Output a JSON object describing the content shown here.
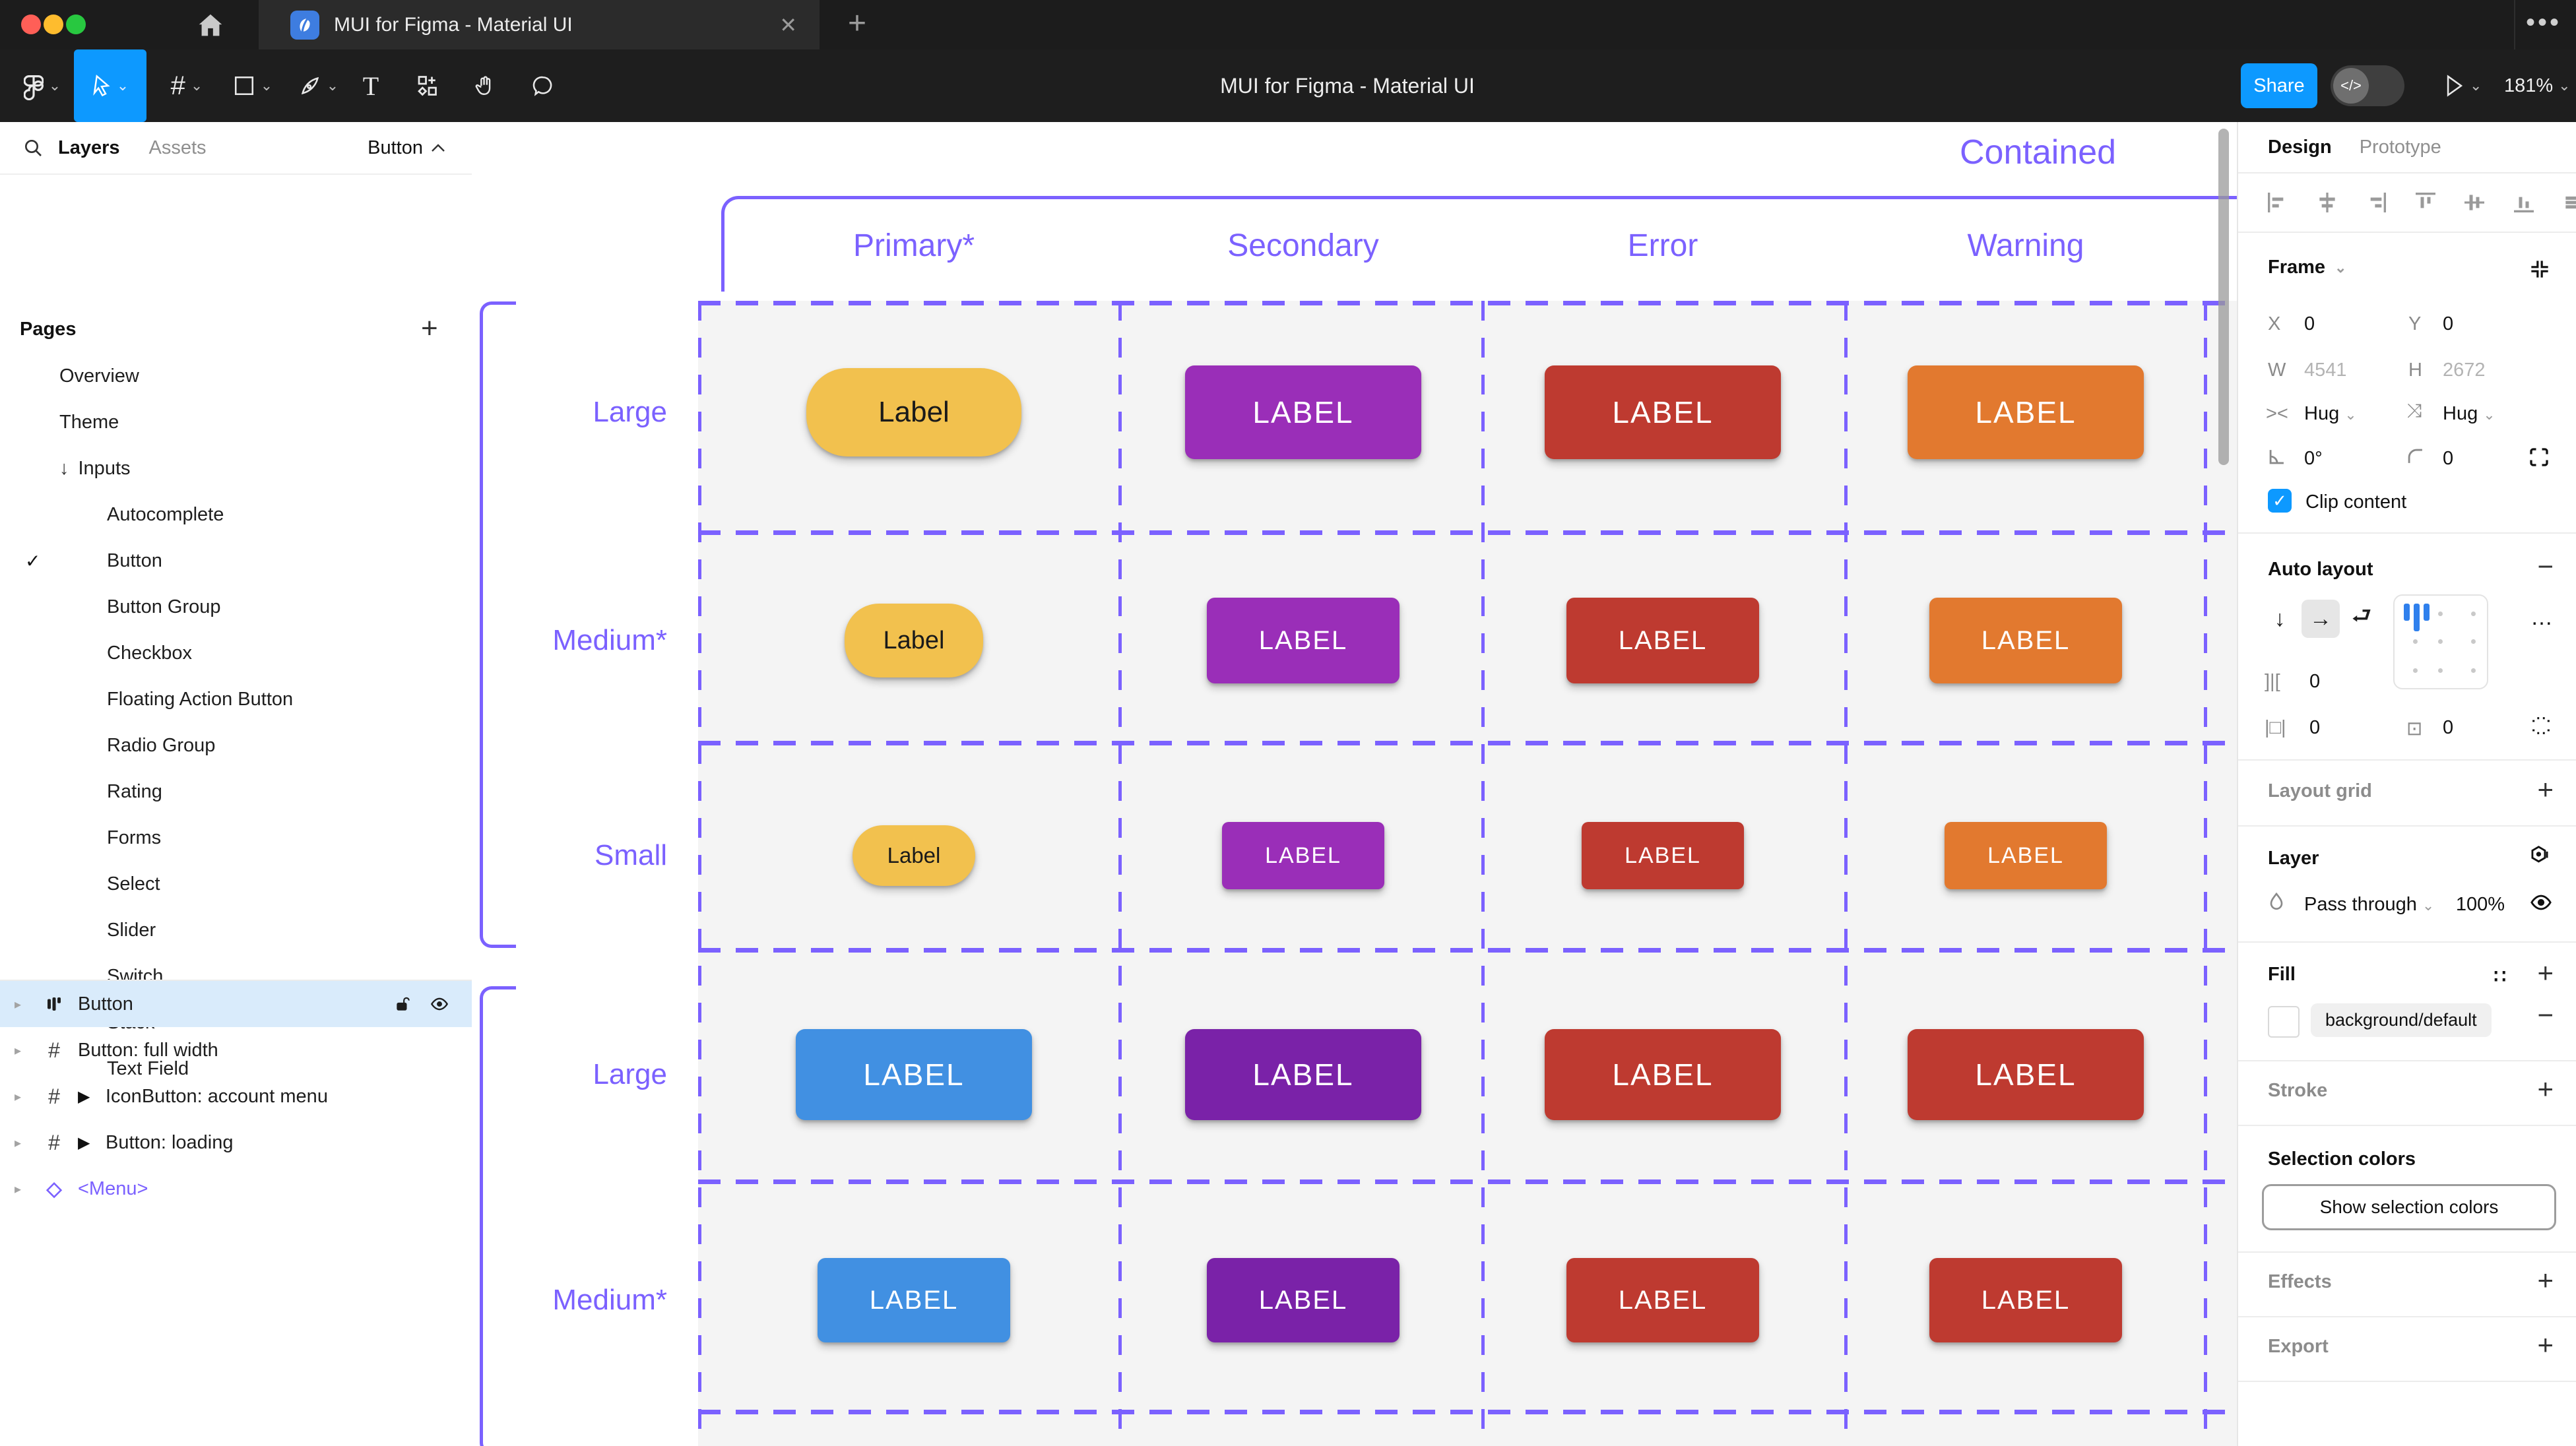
{
  "window": {
    "tab_title": "MUI for Figma - Material UI",
    "close_glyph": "✕",
    "new_tab_glyph": "+",
    "overflow_glyph": "•••",
    "traffic": {
      "red": "#ff5f57",
      "yellow": "#febc2e",
      "green": "#28c840"
    }
  },
  "toolbar": {
    "title": "MUI for Figma - Material UI",
    "share_label": "Share",
    "zoom_level": "181%"
  },
  "sidebar": {
    "tab_layers": "Layers",
    "tab_assets": "Assets",
    "header_selector": "Button",
    "pages_title": "Pages",
    "pages": [
      {
        "label": "Overview",
        "level": 1
      },
      {
        "label": "Theme",
        "level": 1
      },
      {
        "label": "Inputs",
        "level": 1,
        "arrow": "↓"
      },
      {
        "label": "Autocomplete",
        "level": 2
      },
      {
        "label": "Button",
        "level": 2,
        "checked": true
      },
      {
        "label": "Button Group",
        "level": 2
      },
      {
        "label": "Checkbox",
        "level": 2
      },
      {
        "label": "Floating Action Button",
        "level": 2
      },
      {
        "label": "Radio Group",
        "level": 2
      },
      {
        "label": "Rating",
        "level": 2
      },
      {
        "label": "Forms",
        "level": 2
      },
      {
        "label": "Select",
        "level": 2
      },
      {
        "label": "Slider",
        "level": 2
      },
      {
        "label": "Switch",
        "level": 2
      },
      {
        "label": "Stack",
        "level": 2
      },
      {
        "label": "Text Field",
        "level": 2
      }
    ],
    "layers": [
      {
        "label": "Button",
        "icon": "auto-layout",
        "selected": true
      },
      {
        "label": "Button: full width",
        "icon": "frame"
      },
      {
        "label": "IconButton: account menu",
        "icon": "frame",
        "expand": true
      },
      {
        "label": "Button: loading",
        "icon": "frame",
        "expand": true
      },
      {
        "label": "<Menu>",
        "icon": "instance",
        "purple": true
      }
    ]
  },
  "canvas": {
    "frame_label": "Contained",
    "columns": [
      "Primary*",
      "Secondary",
      "Error",
      "Warning"
    ],
    "annotation_color": "#7B61FF",
    "rows": [
      {
        "label": "Large",
        "buttons": [
          {
            "text": "Label",
            "bg": "#F2C14E",
            "fg": "#1a1a1a",
            "pill": true
          },
          {
            "text": "LABEL",
            "bg": "#9A2EB8",
            "fg": "#ffffff"
          },
          {
            "text": "LABEL",
            "bg": "#BE3A30",
            "fg": "#ffffff"
          },
          {
            "text": "LABEL",
            "bg": "#E2792F",
            "fg": "#ffffff"
          }
        ]
      },
      {
        "label": "Medium*",
        "buttons": [
          {
            "text": "Label",
            "bg": "#F2C14E",
            "fg": "#1a1a1a",
            "pill": true
          },
          {
            "text": "LABEL",
            "bg": "#9A2EB8",
            "fg": "#ffffff"
          },
          {
            "text": "LABEL",
            "bg": "#BE3A30",
            "fg": "#ffffff"
          },
          {
            "text": "LABEL",
            "bg": "#E2792F",
            "fg": "#ffffff"
          }
        ]
      },
      {
        "label": "Small",
        "buttons": [
          {
            "text": "Label",
            "bg": "#F2C14E",
            "fg": "#1a1a1a",
            "pill": true
          },
          {
            "text": "LABEL",
            "bg": "#9A2EB8",
            "fg": "#ffffff"
          },
          {
            "text": "LABEL",
            "bg": "#BE3A30",
            "fg": "#ffffff"
          },
          {
            "text": "LABEL",
            "bg": "#E2792F",
            "fg": "#ffffff"
          }
        ]
      },
      {
        "label": "Large",
        "buttons": [
          {
            "text": "LABEL",
            "bg": "#4190E2",
            "fg": "#ffffff"
          },
          {
            "text": "LABEL",
            "bg": "#7A22A8",
            "fg": "#ffffff"
          },
          {
            "text": "LABEL",
            "bg": "#BE3A30",
            "fg": "#ffffff"
          },
          {
            "text": "LABEL",
            "bg": "#BE3A30",
            "fg": "#ffffff"
          }
        ]
      },
      {
        "label": "Medium*",
        "buttons": [
          {
            "text": "LABEL",
            "bg": "#4190E2",
            "fg": "#ffffff"
          },
          {
            "text": "LABEL",
            "bg": "#7A22A8",
            "fg": "#ffffff"
          },
          {
            "text": "LABEL",
            "bg": "#BE3A30",
            "fg": "#ffffff"
          },
          {
            "text": "LABEL",
            "bg": "#BE3A30",
            "fg": "#ffffff"
          }
        ]
      }
    ]
  },
  "inspector": {
    "tab_design": "Design",
    "tab_prototype": "Prototype",
    "frame": {
      "title": "Frame",
      "x_label": "X",
      "x_value": "0",
      "y_label": "Y",
      "y_value": "0",
      "w_label": "W",
      "w_value": "4541",
      "h_label": "H",
      "h_value": "2672",
      "hug_h": "Hug",
      "hug_v": "Hug",
      "rotation": "0°",
      "radius": "0",
      "clip_label": "Clip content"
    },
    "auto_layout": {
      "title": "Auto layout",
      "gap": "0",
      "pad_h": "0",
      "pad_v": "0"
    },
    "layout_grid_title": "Layout grid",
    "layer": {
      "title": "Layer",
      "blend": "Pass through",
      "opacity": "100%"
    },
    "fill": {
      "title": "Fill",
      "token": "background/default"
    },
    "stroke_title": "Stroke",
    "selection": {
      "title": "Selection colors",
      "button": "Show selection colors"
    },
    "effects_title": "Effects",
    "export_title": "Export"
  }
}
